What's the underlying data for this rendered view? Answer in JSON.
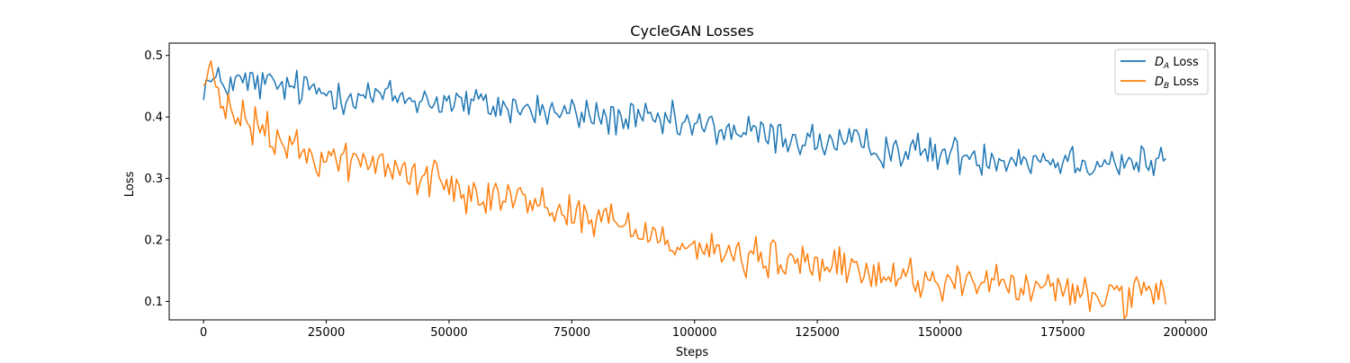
{
  "chart_data": {
    "type": "line",
    "title": "CycleGAN  Losses",
    "xlabel": "Steps",
    "ylabel": "Loss",
    "xlim": [
      -7000,
      206000
    ],
    "ylim": [
      0.07,
      0.52
    ],
    "xticks": [
      0,
      25000,
      50000,
      75000,
      100000,
      125000,
      150000,
      175000,
      200000
    ],
    "xtick_labels": [
      "0",
      "25000",
      "50000",
      "75000",
      "100000",
      "125000",
      "150000",
      "175000",
      "200000"
    ],
    "yticks": [
      0.1,
      0.2,
      0.3,
      0.4,
      0.5
    ],
    "ytick_labels": [
      "0.1",
      "0.2",
      "0.3",
      "0.4",
      "0.5"
    ],
    "grid": false,
    "legend_position": "top-right",
    "series": [
      {
        "name": "D_A Loss",
        "label_main": "D",
        "label_sub": "A",
        "label_suffix": " Loss",
        "color": "#1f77b4",
        "x_start": 0,
        "x_step": 500,
        "noise_amplitude": 0.028,
        "trend": [
          [
            0,
            0.455
          ],
          [
            10000,
            0.455
          ],
          [
            25000,
            0.44
          ],
          [
            50000,
            0.425
          ],
          [
            75000,
            0.405
          ],
          [
            100000,
            0.385
          ],
          [
            125000,
            0.36
          ],
          [
            150000,
            0.34
          ],
          [
            175000,
            0.33
          ],
          [
            196000,
            0.325
          ]
        ]
      },
      {
        "name": "D_B Loss",
        "label_main": "D",
        "label_sub": "B",
        "label_suffix": " Loss",
        "color": "#ff7f0e",
        "x_start": 0,
        "x_step": 500,
        "noise_amplitude": 0.03,
        "trend": [
          [
            0,
            0.455
          ],
          [
            1500,
            0.48
          ],
          [
            3000,
            0.42
          ],
          [
            10000,
            0.385
          ],
          [
            20000,
            0.34
          ],
          [
            30000,
            0.33
          ],
          [
            40000,
            0.315
          ],
          [
            50000,
            0.29
          ],
          [
            60000,
            0.275
          ],
          [
            75000,
            0.245
          ],
          [
            90000,
            0.215
          ],
          [
            100000,
            0.19
          ],
          [
            110000,
            0.17
          ],
          [
            125000,
            0.16
          ],
          [
            135000,
            0.145
          ],
          [
            150000,
            0.135
          ],
          [
            165000,
            0.125
          ],
          [
            175000,
            0.115
          ],
          [
            185000,
            0.11
          ],
          [
            196000,
            0.105
          ]
        ]
      }
    ]
  }
}
